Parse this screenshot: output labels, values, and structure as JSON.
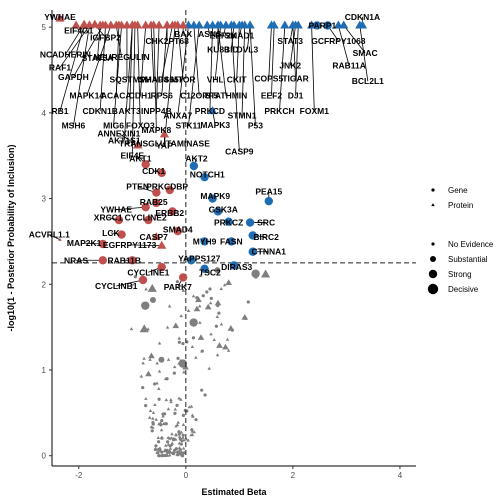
{
  "chart_data": {
    "type": "scatter",
    "xlabel": "Estimated Beta",
    "ylabel": "-log10(1 - Posterior Probability of Inclusion)",
    "xlim": [
      -2.5,
      4.3
    ],
    "ylim": [
      -0.12,
      5.2
    ],
    "x_ticks": [
      -2,
      0,
      2,
      4
    ],
    "y_ticks": [
      0,
      1,
      2,
      3,
      4,
      5
    ],
    "threshold_y": 2.25,
    "threshold_x": 0,
    "grid": false,
    "colors": {
      "negative": "#c0504d",
      "positive": "#1f6eb4",
      "background": "#7f7f7f"
    },
    "legend_shape": {
      "entries": [
        {
          "label": "Gene",
          "shape": "circle"
        },
        {
          "label": "Protein",
          "shape": "triangle"
        }
      ]
    },
    "legend_size": {
      "entries": [
        {
          "label": "No Evidence",
          "size": 1
        },
        {
          "label": "Substantial",
          "size": 2
        },
        {
          "label": "Strong",
          "size": 3
        },
        {
          "label": "Decisive",
          "size": 4
        }
      ]
    },
    "labeled_points": [
      {
        "label": "YWHAE",
        "x": -2.35,
        "y": 5.1,
        "shape": "triangle",
        "size": 3,
        "lx": -2.35,
        "ly": 5.12
      },
      {
        "label": "EIF4G1",
        "x": -2.05,
        "y": 5.02,
        "shape": "triangle",
        "size": 3,
        "lx": -2.0,
        "ly": 4.96
      },
      {
        "label": "NCADHERIN",
        "x": -1.9,
        "y": 5.03,
        "shape": "triangle",
        "size": 3,
        "lx": -2.25,
        "ly": 4.68
      },
      {
        "label": "RAF1",
        "x": -1.8,
        "y": 5.02,
        "shape": "triangle",
        "size": 3,
        "lx": -2.35,
        "ly": 4.53
      },
      {
        "label": "IGFBP2",
        "x": -1.7,
        "y": 5.03,
        "shape": "triangle",
        "size": 3,
        "lx": -1.5,
        "ly": 4.88
      },
      {
        "label": "STAT5A",
        "x": -1.6,
        "y": 5.02,
        "shape": "triangle",
        "size": 3,
        "lx": -1.65,
        "ly": 4.64
      },
      {
        "label": "GAPDH",
        "x": -1.55,
        "y": 5.02,
        "shape": "triangle",
        "size": 3,
        "lx": -2.1,
        "ly": 4.42
      },
      {
        "label": "NEUREGULIN",
        "x": -1.3,
        "y": 5.02,
        "shape": "triangle",
        "size": 3,
        "lx": -1.2,
        "ly": 4.65
      },
      {
        "label": "MAPK14",
        "x": -1.4,
        "y": 5.02,
        "shape": "triangle",
        "size": 3,
        "lx": -1.85,
        "ly": 4.2
      },
      {
        "label": "ACACA",
        "x": -1.25,
        "y": 5.02,
        "shape": "triangle",
        "size": 3,
        "lx": -1.3,
        "ly": 4.2
      },
      {
        "label": "SQSTM1",
        "x": -1.1,
        "y": 5.02,
        "shape": "triangle",
        "size": 3,
        "lx": -1.1,
        "ly": 4.39
      },
      {
        "label": "RB1",
        "x": -1.9,
        "y": 5.02,
        "shape": "triangle",
        "size": 3,
        "lx": -2.35,
        "ly": 4.02
      },
      {
        "label": "CDKN1B",
        "x": -1.5,
        "y": 5.02,
        "shape": "triangle",
        "size": 3,
        "lx": -1.6,
        "ly": 4.02
      },
      {
        "label": "MSH6",
        "x": -1.8,
        "y": 5.02,
        "shape": "triangle",
        "size": 3,
        "lx": -2.1,
        "ly": 3.85
      },
      {
        "label": "AKT3",
        "x": -1.0,
        "y": 5.02,
        "shape": "triangle",
        "size": 3,
        "lx": -1.05,
        "ly": 4.02
      },
      {
        "label": "MIG6",
        "x": -1.2,
        "y": 5.02,
        "shape": "triangle",
        "size": 3,
        "lx": -1.35,
        "ly": 3.85
      },
      {
        "label": "FOXO3",
        "x": -0.9,
        "y": 5.02,
        "shape": "triangle",
        "size": 3,
        "lx": -0.85,
        "ly": 3.85
      },
      {
        "label": "CDH1",
        "x": -0.75,
        "y": 5.02,
        "shape": "triangle",
        "size": 3,
        "lx": -0.85,
        "ly": 4.2
      },
      {
        "label": "SMAD4",
        "x": -0.65,
        "y": 5.02,
        "shape": "triangle",
        "size": 3,
        "lx": -0.6,
        "ly": 4.39
      },
      {
        "label": "INPP4B",
        "x": -0.5,
        "y": 5.02,
        "shape": "triangle",
        "size": 3,
        "lx": -0.55,
        "ly": 4.02
      },
      {
        "label": "AKT1S1",
        "x": -1.0,
        "y": 5.02,
        "shape": "triangle",
        "size": 3,
        "lx": -1.15,
        "ly": 3.68
      },
      {
        "label": "MAPK8",
        "x": -0.6,
        "y": 5.02,
        "shape": "triangle",
        "size": 3,
        "lx": -0.55,
        "ly": 3.8
      },
      {
        "label": "EIF4E",
        "x": -0.95,
        "y": 5.02,
        "shape": "triangle",
        "size": 3,
        "lx": -1.0,
        "ly": 3.5
      },
      {
        "label": "TRANSGLUTAMINASE",
        "x": -0.2,
        "y": 5.02,
        "shape": "triangle",
        "size": 3,
        "lx": -0.4,
        "ly": 3.64
      },
      {
        "label": "CHK2PT68",
        "x": -0.35,
        "y": 5.02,
        "shape": "triangle",
        "size": 3,
        "lx": -0.35,
        "ly": 4.84
      },
      {
        "label": "PHAPS657",
        "x": -0.25,
        "y": 5.02,
        "shape": "triangle",
        "size": 3,
        "lx": -0.45,
        "ly": 4.39
      },
      {
        "label": "RPS6",
        "x": -0.35,
        "y": 5.02,
        "shape": "triangle",
        "size": 3,
        "lx": -0.45,
        "ly": 4.2
      },
      {
        "label": "MTOR",
        "x": -0.15,
        "y": 5.02,
        "shape": "triangle",
        "size": 3,
        "lx": -0.05,
        "ly": 4.39
      },
      {
        "label": "ANXA7",
        "x": 0.05,
        "y": 5.02,
        "shape": "triangle",
        "size": 3,
        "lx": -0.15,
        "ly": 3.97
      },
      {
        "label": "BAX",
        "x": -0.05,
        "y": 5.02,
        "shape": "triangle",
        "size": 3,
        "lx": -0.05,
        "ly": 4.92
      },
      {
        "label": "C12ORF5",
        "x": 0.15,
        "y": 5.02,
        "shape": "triangle",
        "size": 3,
        "lx": 0.25,
        "ly": 4.2
      },
      {
        "label": "ASNS",
        "x": 0.4,
        "y": 5.02,
        "shape": "triangle",
        "size": 3,
        "lx": 0.45,
        "ly": 4.92
      },
      {
        "label": "EEF2K",
        "x": 0.75,
        "y": 5.02,
        "shape": "triangle",
        "size": 3,
        "lx": 0.7,
        "ly": 4.9
      },
      {
        "label": "SMAD1",
        "x": 1.05,
        "y": 5.02,
        "shape": "triangle",
        "size": 3,
        "lx": 1.0,
        "ly": 4.9
      },
      {
        "label": "KU80",
        "x": 0.6,
        "y": 5.02,
        "shape": "triangle",
        "size": 3,
        "lx": 0.6,
        "ly": 4.74
      },
      {
        "label": "BID",
        "x": 0.9,
        "y": 5.02,
        "shape": "triangle",
        "size": 3,
        "lx": 0.85,
        "ly": 4.74
      },
      {
        "label": "DVL3",
        "x": 1.2,
        "y": 5.02,
        "shape": "triangle",
        "size": 3,
        "lx": 1.15,
        "ly": 4.74
      },
      {
        "label": "VHL",
        "x": 0.65,
        "y": 5.02,
        "shape": "triangle",
        "size": 3,
        "lx": 0.55,
        "ly": 4.39
      },
      {
        "label": "CKIT",
        "x": 1.0,
        "y": 5.02,
        "shape": "triangle",
        "size": 3,
        "lx": 0.95,
        "ly": 4.39
      },
      {
        "label": "PRKCD",
        "x": 0.5,
        "y": 5.02,
        "shape": "triangle",
        "size": 3,
        "lx": 0.45,
        "ly": 4.02
      },
      {
        "label": "STATHMIN",
        "x": 0.6,
        "y": 5.02,
        "shape": "triangle",
        "size": 3,
        "lx": 0.75,
        "ly": 4.2
      },
      {
        "label": "STMN1",
        "x": 1.1,
        "y": 5.02,
        "shape": "triangle",
        "size": 3,
        "lx": 1.05,
        "ly": 3.97
      },
      {
        "label": "MAPK3",
        "x": 0.5,
        "y": 4.02,
        "shape": "triangle",
        "size": 3,
        "lx": 0.55,
        "ly": 3.86
      },
      {
        "label": "STK11",
        "x": 0.25,
        "y": 5.02,
        "shape": "triangle",
        "size": 3,
        "lx": 0.05,
        "ly": 3.85
      },
      {
        "label": "P53",
        "x": 1.2,
        "y": 5.02,
        "shape": "triangle",
        "size": 3,
        "lx": 1.3,
        "ly": 3.85
      },
      {
        "label": "CASP9",
        "x": 0.85,
        "y": 5.02,
        "shape": "triangle",
        "size": 3,
        "lx": 1.0,
        "ly": 3.55
      },
      {
        "label": "COPS5",
        "x": 1.6,
        "y": 5.02,
        "shape": "triangle",
        "size": 3,
        "lx": 1.55,
        "ly": 4.4
      },
      {
        "label": "JNK2",
        "x": 2.05,
        "y": 5.02,
        "shape": "triangle",
        "size": 3,
        "lx": 1.95,
        "ly": 4.55
      },
      {
        "label": "TIGAR",
        "x": 2.0,
        "y": 5.02,
        "shape": "triangle",
        "size": 3,
        "lx": 2.05,
        "ly": 4.4
      },
      {
        "label": "EEF2",
        "x": 1.65,
        "y": 5.02,
        "shape": "triangle",
        "size": 3,
        "lx": 1.6,
        "ly": 4.2
      },
      {
        "label": "DJ1",
        "x": 2.1,
        "y": 5.02,
        "shape": "triangle",
        "size": 3,
        "lx": 2.05,
        "ly": 4.2
      },
      {
        "label": "PRKCH",
        "x": 1.85,
        "y": 5.02,
        "shape": "triangle",
        "size": 3,
        "lx": 1.75,
        "ly": 4.02
      },
      {
        "label": "FOXM1",
        "x": 2.35,
        "y": 5.02,
        "shape": "triangle",
        "size": 3,
        "lx": 2.4,
        "ly": 4.02
      },
      {
        "label": "STAT3",
        "x": 2.0,
        "y": 5.02,
        "shape": "triangle",
        "size": 3,
        "lx": 1.95,
        "ly": 4.84
      },
      {
        "label": "PARP1",
        "x": 2.45,
        "y": 5.02,
        "shape": "circle",
        "size": 3,
        "lx": 2.55,
        "ly": 5.02
      },
      {
        "label": "GCFRPY1068",
        "x": 2.65,
        "y": 5.02,
        "shape": "circle",
        "size": 3,
        "lx": 2.85,
        "ly": 4.84
      },
      {
        "label": "SMAC",
        "x": 2.95,
        "y": 5.02,
        "shape": "triangle",
        "size": 3,
        "lx": 3.35,
        "ly": 4.7
      },
      {
        "label": "RAB11A",
        "x": 2.85,
        "y": 5.02,
        "shape": "triangle",
        "size": 3,
        "lx": 3.05,
        "ly": 4.55
      },
      {
        "label": "BCL2L1",
        "x": 3.25,
        "y": 5.02,
        "shape": "triangle",
        "size": 3,
        "lx": 3.4,
        "ly": 4.37
      },
      {
        "label": "CDKN1A",
        "x": 3.3,
        "y": 5.02,
        "shape": "triangle",
        "size": 3,
        "lx": 3.3,
        "ly": 5.12
      },
      {
        "label": "ANNEXIN1",
        "x": -0.9,
        "y": 3.62,
        "shape": "triangle",
        "size": 3,
        "lx": -1.25,
        "ly": 3.76
      },
      {
        "label": "YAP",
        "x": -0.4,
        "y": 3.75,
        "shape": "triangle",
        "size": 3,
        "lx": -0.4,
        "ly": 3.62
      },
      {
        "label": "AKT1",
        "x": -0.75,
        "y": 3.4,
        "shape": "circle",
        "size": 3,
        "lx": -0.85,
        "ly": 3.47
      },
      {
        "label": "AKT2",
        "x": 0.15,
        "y": 3.38,
        "shape": "circle",
        "size": 3,
        "lx": 0.2,
        "ly": 3.47
      },
      {
        "label": "CDK1",
        "x": -0.45,
        "y": 3.3,
        "shape": "circle",
        "size": 3,
        "lx": -0.6,
        "ly": 3.32
      },
      {
        "label": "NOTCH1",
        "x": 0.35,
        "y": 3.25,
        "shape": "circle",
        "size": 3,
        "lx": 0.4,
        "ly": 3.28
      },
      {
        "label": "PTEN",
        "x": -0.55,
        "y": 3.07,
        "shape": "circle",
        "size": 3,
        "lx": -0.9,
        "ly": 3.14
      },
      {
        "label": "PRKCDBP",
        "x": -0.3,
        "y": 3.1,
        "shape": "circle",
        "size": 3,
        "lx": -0.35,
        "ly": 3.14
      },
      {
        "label": "MAPK9",
        "x": 0.5,
        "y": 3.0,
        "shape": "circle",
        "size": 3,
        "lx": 0.55,
        "ly": 3.03
      },
      {
        "label": "PEA15",
        "x": 1.55,
        "y": 2.97,
        "shape": "circle",
        "size": 3,
        "lx": 1.55,
        "ly": 3.08
      },
      {
        "label": "RAB25",
        "x": -0.55,
        "y": 2.95,
        "shape": "circle",
        "size": 3,
        "lx": -0.6,
        "ly": 2.96
      },
      {
        "label": "YWHAE",
        "x": -0.75,
        "y": 2.9,
        "shape": "circle",
        "size": 3,
        "lx": -1.3,
        "ly": 2.87
      },
      {
        "label": "ERBB2",
        "x": -0.25,
        "y": 2.85,
        "shape": "circle",
        "size": 3,
        "lx": -0.3,
        "ly": 2.83
      },
      {
        "label": "GSK3A",
        "x": 0.6,
        "y": 2.85,
        "shape": "circle",
        "size": 3,
        "lx": 0.7,
        "ly": 2.87
      },
      {
        "label": "XRCC1",
        "x": -1.25,
        "y": 2.75,
        "shape": "circle",
        "size": 3,
        "lx": -1.45,
        "ly": 2.78
      },
      {
        "label": "CYCLINE2",
        "x": -0.7,
        "y": 2.75,
        "shape": "circle",
        "size": 3,
        "lx": -0.75,
        "ly": 2.78
      },
      {
        "label": "PRKCZ",
        "x": 0.8,
        "y": 2.73,
        "shape": "circle",
        "size": 3,
        "lx": 0.8,
        "ly": 2.72
      },
      {
        "label": "SRC",
        "x": 1.2,
        "y": 2.72,
        "shape": "circle",
        "size": 3,
        "lx": 1.5,
        "ly": 2.72
      },
      {
        "label": "ACVRL1.1",
        "x": -2.35,
        "y": 2.52,
        "shape": "triangle",
        "size": 1,
        "lx": -2.55,
        "ly": 2.58
      },
      {
        "label": "LCK",
        "x": -1.2,
        "y": 2.58,
        "shape": "circle",
        "size": 3,
        "lx": -1.4,
        "ly": 2.6
      },
      {
        "label": "CASP7",
        "x": -0.55,
        "y": 2.55,
        "shape": "triangle",
        "size": 3,
        "lx": -0.6,
        "ly": 2.55
      },
      {
        "label": "SMAD4",
        "x": -0.15,
        "y": 2.62,
        "shape": "circle",
        "size": 3,
        "lx": -0.15,
        "ly": 2.64
      },
      {
        "label": "BIRC2",
        "x": 1.25,
        "y": 2.57,
        "shape": "circle",
        "size": 3,
        "lx": 1.5,
        "ly": 2.55
      },
      {
        "label": "MAP2K1",
        "x": -1.55,
        "y": 2.47,
        "shape": "circle",
        "size": 3,
        "lx": -1.9,
        "ly": 2.48
      },
      {
        "label": "EGFRPY1173",
        "x": -0.45,
        "y": 2.45,
        "shape": "triangle",
        "size": 3,
        "lx": -1.05,
        "ly": 2.46
      },
      {
        "label": "MYH9",
        "x": 0.35,
        "y": 2.5,
        "shape": "circle",
        "size": 3,
        "lx": 0.35,
        "ly": 2.5
      },
      {
        "label": "FASN",
        "x": 0.85,
        "y": 2.5,
        "shape": "circle",
        "size": 3,
        "lx": 0.85,
        "ly": 2.5
      },
      {
        "label": "CTNNA1",
        "x": 1.25,
        "y": 2.38,
        "shape": "circle",
        "size": 3,
        "lx": 1.55,
        "ly": 2.38
      },
      {
        "label": "NRAS",
        "x": -1.55,
        "y": 2.28,
        "shape": "circle",
        "size": 3,
        "lx": -2.05,
        "ly": 2.28
      },
      {
        "label": "RAB11B",
        "x": -1.0,
        "y": 2.28,
        "shape": "circle",
        "size": 3,
        "lx": -1.15,
        "ly": 2.28
      },
      {
        "label": "YAPPS127",
        "x": 0.1,
        "y": 2.28,
        "shape": "circle",
        "size": 3,
        "lx": 0.25,
        "ly": 2.3
      },
      {
        "label": "DIRAS3",
        "x": 0.9,
        "y": 2.22,
        "shape": "circle",
        "size": 3,
        "lx": 0.95,
        "ly": 2.2
      },
      {
        "label": "CYCLINE1",
        "x": -0.45,
        "y": 2.2,
        "shape": "circle",
        "size": 3,
        "lx": -0.7,
        "ly": 2.14
      },
      {
        "label": "TSC2",
        "x": 0.35,
        "y": 2.18,
        "shape": "circle",
        "size": 3,
        "lx": 0.45,
        "ly": 2.14
      },
      {
        "label": "CYCLINB1",
        "x": -0.8,
        "y": 2.05,
        "shape": "circle",
        "size": 3,
        "lx": -1.3,
        "ly": 1.98
      },
      {
        "label": "PARK7",
        "x": -0.05,
        "y": 2.08,
        "shape": "circle",
        "size": 3,
        "lx": -0.15,
        "ly": 1.97
      }
    ]
  }
}
